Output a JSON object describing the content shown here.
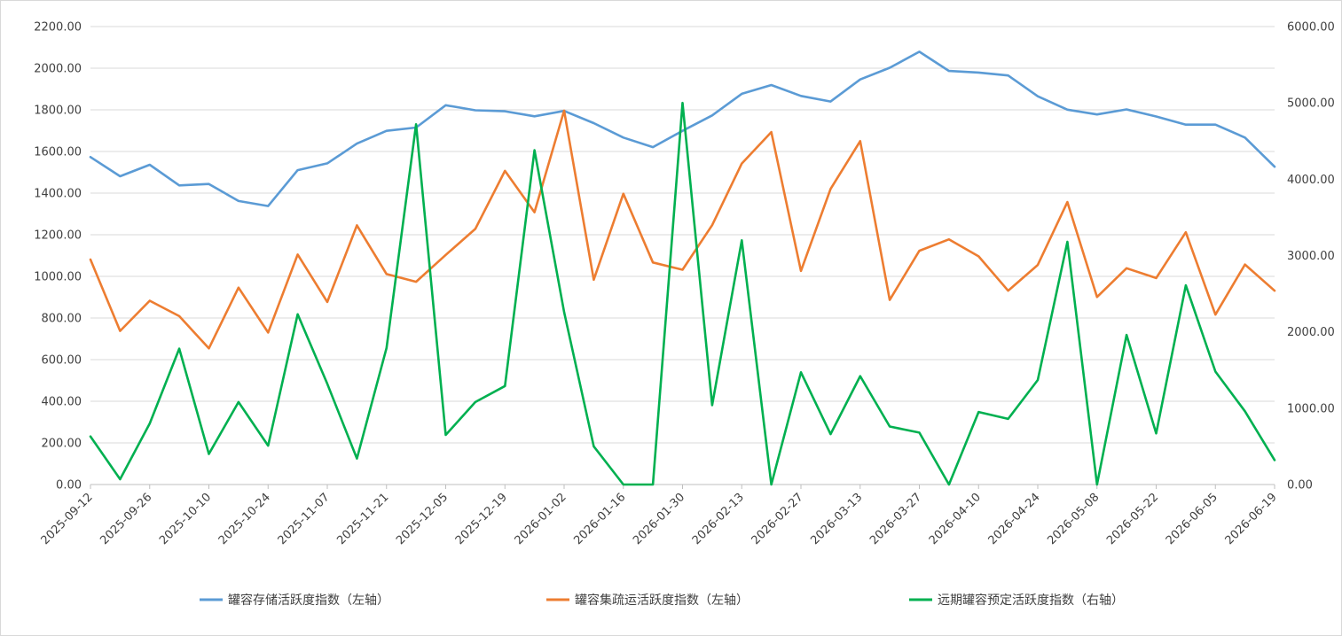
{
  "chart_data": {
    "type": "line",
    "x": [
      "2025-09-12",
      "2025-09-19",
      "2025-09-26",
      "2025-10-03",
      "2025-10-10",
      "2025-10-17",
      "2025-10-24",
      "2025-10-31",
      "2025-11-07",
      "2025-11-14",
      "2025-11-21",
      "2025-11-28",
      "2025-12-05",
      "2025-12-12",
      "2025-12-19",
      "2025-12-26",
      "2026-01-02",
      "2026-01-09",
      "2026-01-16",
      "2026-01-23",
      "2026-01-30",
      "2026-02-06",
      "2026-02-13",
      "2026-02-20",
      "2026-02-27",
      "2026-03-06",
      "2026-03-13",
      "2026-03-20",
      "2026-03-27",
      "2026-04-03",
      "2026-04-10",
      "2026-04-17",
      "2026-04-24",
      "2026-05-01",
      "2026-05-08",
      "2026-05-15",
      "2026-05-22",
      "2026-05-29",
      "2026-06-05",
      "2026-06-12",
      "2026-06-19"
    ],
    "x_tick_labels": [
      "2025-09-12",
      "2025-09-26",
      "2025-10-10",
      "2025-10-24",
      "2025-11-07",
      "2025-11-21",
      "2025-12-05",
      "2025-12-19",
      "2026-01-02",
      "2026-01-16",
      "2026-01-30",
      "2026-02-13",
      "2026-02-27",
      "2026-03-13",
      "2026-03-27",
      "2026-04-10",
      "2026-04-24",
      "2026-05-08",
      "2026-05-22",
      "2026-06-05",
      "2026-06-19"
    ],
    "y_left": {
      "min": 0,
      "max": 2200,
      "step": 200,
      "tick_labels": [
        "0.00",
        "200.00",
        "400.00",
        "600.00",
        "800.00",
        "1000.00",
        "1200.00",
        "1400.00",
        "1600.00",
        "1800.00",
        "2000.00",
        "2200.00"
      ]
    },
    "y_right": {
      "min": 0,
      "max": 6000,
      "step": 1000,
      "tick_labels": [
        "0.00",
        "1000.00",
        "2000.00",
        "3000.00",
        "4000.00",
        "5000.00",
        "6000.00"
      ]
    },
    "grid": true,
    "legend_position": "bottom",
    "series": [
      {
        "name": "罐容存储活跃度指数（左轴）",
        "axis": "left",
        "color": "#5b9bd5",
        "values": [
          1573,
          1481,
          1536,
          1437,
          1444,
          1362,
          1338,
          1510,
          1543,
          1638,
          1699,
          1715,
          1822,
          1798,
          1793,
          1769,
          1795,
          1736,
          1667,
          1621,
          1699,
          1773,
          1877,
          1919,
          1867,
          1840,
          1946,
          2002,
          2079,
          1987,
          1979,
          1965,
          1865,
          1801,
          1778,
          1802,
          1768,
          1729,
          1729,
          1667,
          1527
        ]
      },
      {
        "name": "罐容集疏运活跃度指数（左轴）",
        "axis": "left",
        "color": "#ed7d31",
        "values": [
          1081,
          738,
          883,
          809,
          654,
          946,
          730,
          1105,
          877,
          1245,
          1011,
          974,
          1103,
          1228,
          1507,
          1308,
          1796,
          984,
          1397,
          1067,
          1032,
          1246,
          1542,
          1693,
          1026,
          1420,
          1650,
          887,
          1123,
          1178,
          1096,
          931,
          1055,
          1357,
          901,
          1039,
          992,
          1212,
          816,
          1057,
          931
        ]
      },
      {
        "name": "远期罐容预定活跃度指数（右轴）",
        "axis": "right",
        "color": "#00b050",
        "values": [
          630,
          70,
          800,
          1780,
          400,
          1080,
          510,
          2230,
          1320,
          340,
          1790,
          4720,
          650,
          1080,
          1290,
          4380,
          2260,
          500,
          0,
          0,
          5000,
          1040,
          3200,
          0,
          1470,
          660,
          1420,
          760,
          680,
          0,
          950,
          860,
          1370,
          3180,
          0,
          1960,
          670,
          2610,
          1480,
          960,
          320
        ]
      }
    ]
  }
}
